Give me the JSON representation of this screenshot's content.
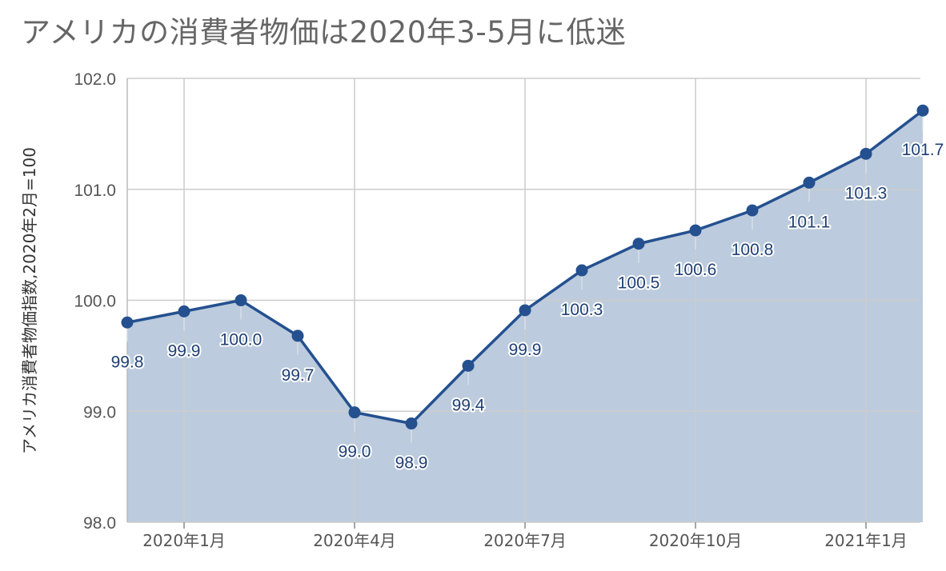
{
  "chart_data": {
    "type": "area",
    "title": "アメリカの消費者物価は2020年3-5月に低迷",
    "ylabel": "アメリカ消費者物価指数,2020年2月=100",
    "xlabel": "",
    "x": [
      "2019-12",
      "2020-01",
      "2020-02",
      "2020-03",
      "2020-04",
      "2020-05",
      "2020-06",
      "2020-07",
      "2020-08",
      "2020-09",
      "2020-10",
      "2020-11",
      "2020-12",
      "2021-01",
      "2021-02"
    ],
    "x_tick_labels": [
      {
        "x": "2020-01",
        "label": "2020年1月"
      },
      {
        "x": "2020-04",
        "label": "2020年4月"
      },
      {
        "x": "2020-07",
        "label": "2020年7月"
      },
      {
        "x": "2020-10",
        "label": "2020年10月"
      },
      {
        "x": "2021-01",
        "label": "2021年1月"
      }
    ],
    "series": [
      {
        "values": [
          99.8,
          99.9,
          100.0,
          99.68,
          98.99,
          98.89,
          99.41,
          99.91,
          100.27,
          100.51,
          100.63,
          100.81,
          101.06,
          101.32,
          101.71
        ],
        "data_labels": [
          "99.8",
          "99.9",
          "100.0",
          "99.7",
          "99.0",
          "98.9",
          "99.4",
          "99.9",
          "100.3",
          "100.5",
          "100.6",
          "100.8",
          "101.1",
          "101.3",
          "101.7"
        ]
      }
    ],
    "ylim": [
      98.0,
      102.0
    ],
    "y_ticks": [
      98.0,
      99.0,
      100.0,
      101.0,
      102.0
    ],
    "y_tick_labels": [
      "98.0",
      "99.0",
      "100.0",
      "101.0",
      "102.0"
    ],
    "grid": true,
    "colors": {
      "line": "#24508f",
      "area": "#bccbdd",
      "grid": "#cccccc",
      "axis_text": "#555555",
      "label_text": "#1f3f74"
    }
  }
}
